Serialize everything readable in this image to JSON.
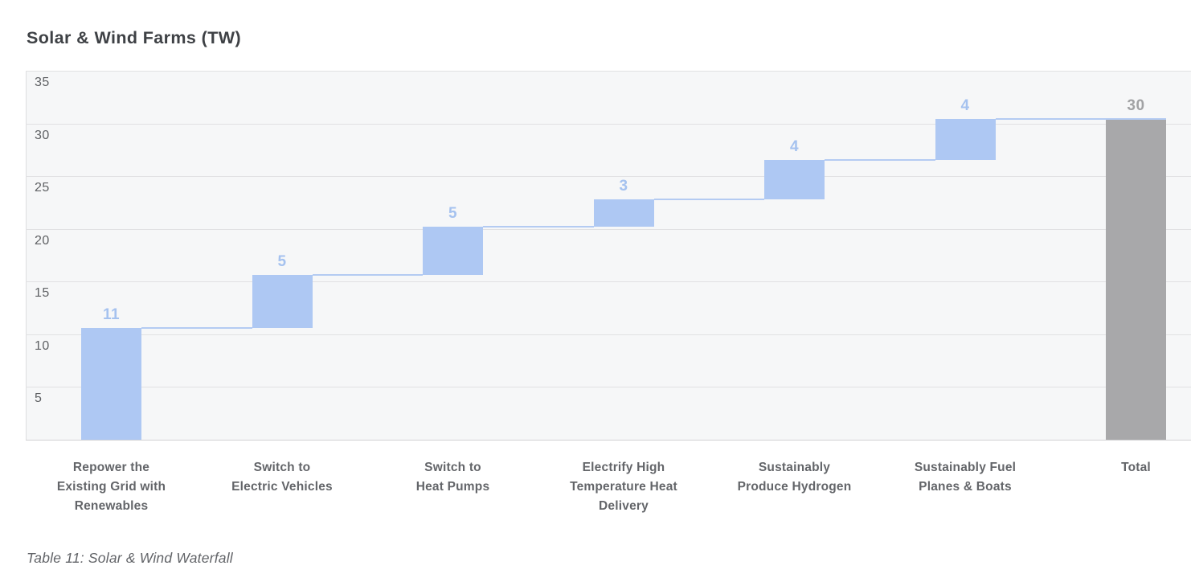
{
  "caption": "Table 11: Solar & Wind Waterfall",
  "chart_data": {
    "type": "waterfall",
    "title": "Solar & Wind Farms (TW)",
    "xlabel": "",
    "ylabel": "",
    "ylim": [
      0,
      35
    ],
    "yticks": [
      35,
      30,
      25,
      20,
      15,
      10,
      5
    ],
    "grid": true,
    "legend": "none",
    "steps": [
      {
        "category_lines": [
          "Repower the",
          "Existing Grid with",
          "Renewables"
        ],
        "display_value": "11",
        "value": 10.6,
        "cumulative_start": 0,
        "cumulative_end": 10.6,
        "kind": "delta"
      },
      {
        "category_lines": [
          "Switch to",
          "Electric Vehicles"
        ],
        "display_value": "5",
        "value": 5.0,
        "cumulative_start": 10.6,
        "cumulative_end": 15.6,
        "kind": "delta"
      },
      {
        "category_lines": [
          "Switch to",
          "Heat Pumps"
        ],
        "display_value": "5",
        "value": 4.6,
        "cumulative_start": 15.6,
        "cumulative_end": 20.2,
        "kind": "delta"
      },
      {
        "category_lines": [
          "Electrify High",
          "Temperature Heat",
          "Delivery"
        ],
        "display_value": "3",
        "value": 2.6,
        "cumulative_start": 20.2,
        "cumulative_end": 22.8,
        "kind": "delta"
      },
      {
        "category_lines": [
          "Sustainably",
          "Produce Hydrogen"
        ],
        "display_value": "4",
        "value": 3.7,
        "cumulative_start": 22.8,
        "cumulative_end": 26.5,
        "kind": "delta"
      },
      {
        "category_lines": [
          "Sustainably Fuel",
          "Planes & Boats"
        ],
        "display_value": "4",
        "value": 3.9,
        "cumulative_start": 26.5,
        "cumulative_end": 30.4,
        "kind": "delta"
      },
      {
        "category_lines": [
          "Total"
        ],
        "display_value": "30",
        "value": 30.4,
        "cumulative_start": 0,
        "cumulative_end": 30.4,
        "kind": "total"
      }
    ],
    "colors": {
      "delta_bar": "#aec8f3",
      "delta_value_label": "#a5c2ef",
      "total_bar": "#a8a8aa",
      "total_value_label": "#a1a2a4",
      "connector": "#b4cbf2",
      "plot_background": "#f6f7f8",
      "gridline": "#e1e1e3",
      "axis_line": "#d2d2d4",
      "ytick_label": "#5e6063",
      "category_label": "#636569",
      "title_text": "#3e4145"
    }
  }
}
